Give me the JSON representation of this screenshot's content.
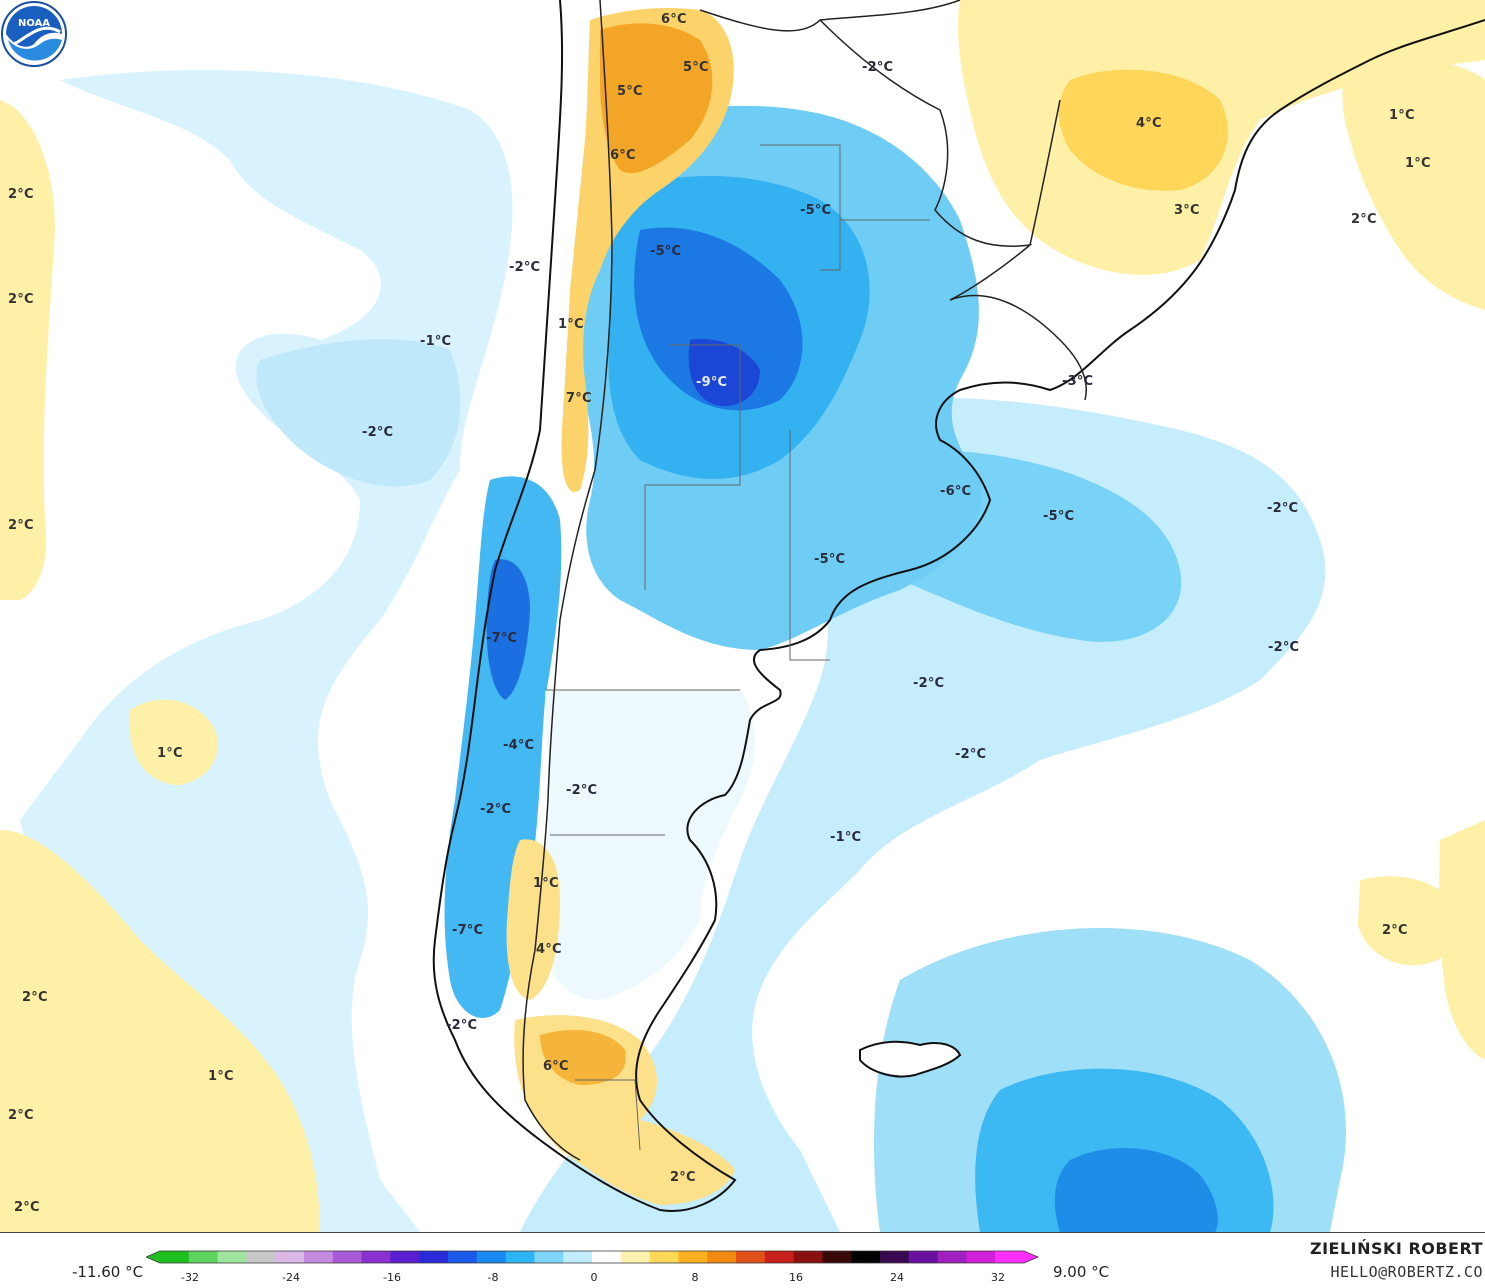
{
  "legend": {
    "min_label": "-11.60 °C",
    "max_label": "9.00 °C",
    "ticks": [
      "-32",
      "-24",
      "-16",
      "-8",
      "0",
      "8",
      "16",
      "24",
      "32"
    ],
    "colors": [
      "#1fbf1f",
      "#5fd35f",
      "#9fe59f",
      "#c8c8c8",
      "#d9b8e8",
      "#c48ae0",
      "#a95ad6",
      "#8a2fd0",
      "#5a1fd0",
      "#2a2ad8",
      "#1a5ae8",
      "#1a8af0",
      "#2fb4f5",
      "#7fd4fa",
      "#c0ecfd",
      "#ffffff",
      "#fff2b0",
      "#ffd85a",
      "#ffb020",
      "#f08a10",
      "#e0501a",
      "#c8201a",
      "#8a1010",
      "#3a0808",
      "#000000",
      "#3a0850",
      "#6a10a0",
      "#a020c0",
      "#d020d8",
      "#ff30ff"
    ]
  },
  "credits": {
    "author": "ZIELIŃSKI ROBERT",
    "email": "HELLO@ROBERTZ.CO",
    "logo": "NOAA"
  },
  "labels": [
    {
      "id": "l1",
      "text": "6°C"
    },
    {
      "id": "l2",
      "text": "5°C"
    },
    {
      "id": "l3",
      "text": "5°C"
    },
    {
      "id": "l4",
      "text": "6°C"
    },
    {
      "id": "l5",
      "text": "-2°C"
    },
    {
      "id": "l6",
      "text": "4°C"
    },
    {
      "id": "l7",
      "text": "1°C"
    },
    {
      "id": "l8",
      "text": "1°C"
    },
    {
      "id": "l9",
      "text": "3°C"
    },
    {
      "id": "l10",
      "text": "-5°C"
    },
    {
      "id": "l11",
      "text": "2°C"
    },
    {
      "id": "l12",
      "text": "2°C"
    },
    {
      "id": "l13",
      "text": "-5°C"
    },
    {
      "id": "l14",
      "text": "-2°C"
    },
    {
      "id": "l15",
      "text": "2°C"
    },
    {
      "id": "l16",
      "text": "1°C"
    },
    {
      "id": "l17",
      "text": "-1°C"
    },
    {
      "id": "l18",
      "text": "-9°C"
    },
    {
      "id": "l19",
      "text": "-3°C"
    },
    {
      "id": "l20",
      "text": "7°C"
    },
    {
      "id": "l21",
      "text": "-2°C"
    },
    {
      "id": "l22",
      "text": "-6°C"
    },
    {
      "id": "l23",
      "text": "-5°C"
    },
    {
      "id": "l24",
      "text": "-2°C"
    },
    {
      "id": "l25",
      "text": "2°C"
    },
    {
      "id": "l26",
      "text": "-5°C"
    },
    {
      "id": "l27",
      "text": "-7°C"
    },
    {
      "id": "l28",
      "text": "-2°C"
    },
    {
      "id": "l29",
      "text": "-2°C"
    },
    {
      "id": "l30",
      "text": "1°C"
    },
    {
      "id": "l31",
      "text": "-4°C"
    },
    {
      "id": "l32",
      "text": "-2°C"
    },
    {
      "id": "l33",
      "text": "-2°C"
    },
    {
      "id": "l34",
      "text": "-1°C"
    },
    {
      "id": "l35",
      "text": "-2°C"
    },
    {
      "id": "l36",
      "text": "1°C"
    },
    {
      "id": "l37",
      "text": "-7°C"
    },
    {
      "id": "l38",
      "text": "4°C"
    },
    {
      "id": "l39",
      "text": "2°C"
    },
    {
      "id": "l40",
      "text": "2°C"
    },
    {
      "id": "l41",
      "text": "-2°C"
    },
    {
      "id": "l42",
      "text": "6°C"
    },
    {
      "id": "l43",
      "text": "1°C"
    },
    {
      "id": "l44",
      "text": "2°C"
    },
    {
      "id": "l45",
      "text": "2°C"
    },
    {
      "id": "l46",
      "text": "2°C"
    }
  ]
}
